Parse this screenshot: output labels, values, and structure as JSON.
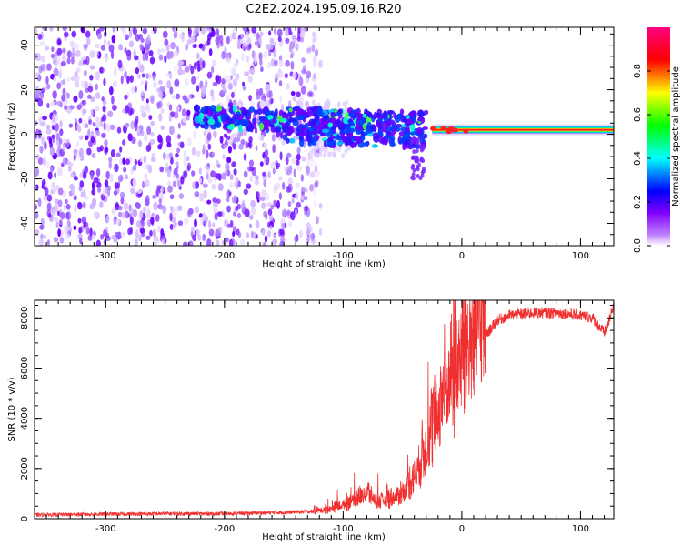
{
  "figure_title": "C2E2.2024.195.09.16.R20",
  "colors": {
    "snr_line": "#f03030",
    "axis": "#000000",
    "noise": "#8a2be2",
    "noise_dark": "#6a00ff"
  },
  "chart_data": [
    {
      "type": "heatmap",
      "title": "C2E2.2024.195.09.16.R20",
      "xlabel": "Height of straight line (km)",
      "ylabel": "Frequency (Hz)",
      "xlim": [
        -360,
        128
      ],
      "ylim": [
        -50,
        48
      ],
      "xticks": [
        -300,
        -200,
        -100,
        0,
        100
      ],
      "yticks": [
        -40,
        -20,
        0,
        20,
        40
      ],
      "colorbar": {
        "label": "Normalized spectral amplitude",
        "range": [
          0,
          1
        ],
        "ticks": [
          0.0,
          0.2,
          0.4,
          0.6,
          0.8
        ],
        "colormap": [
          "#ffffff",
          "#8000ff",
          "#0000ff",
          "#00ffff",
          "#00ff00",
          "#ffff00",
          "#ff0000",
          "#ff0080"
        ]
      },
      "features": [
        {
          "name": "broadband noise",
          "x_range": [
            -360,
            -125
          ],
          "freq_range": [
            -50,
            48
          ],
          "amplitude": 0.15
        },
        {
          "name": "signal band",
          "x_range": [
            -225,
            -150
          ],
          "center_freq": 8,
          "amplitude": 0.3
        },
        {
          "name": "signal band",
          "x_range": [
            -150,
            -30
          ],
          "center_freq": 4,
          "amplitude": 0.4
        },
        {
          "name": "carrier line",
          "x_range": [
            -25,
            128
          ],
          "center_freq": 2,
          "amplitude": 0.9
        }
      ]
    },
    {
      "type": "line",
      "xlabel": "Height of straight line (km)",
      "ylabel": "SNR (10 * v/v)",
      "xlim": [
        -360,
        128
      ],
      "ylim": [
        0,
        8700
      ],
      "xticks": [
        -300,
        -200,
        -100,
        0,
        100
      ],
      "yticks": [
        0,
        2000,
        4000,
        6000,
        8000
      ],
      "series": [
        {
          "name": "SNR",
          "x": [
            -360,
            -300,
            -250,
            -200,
            -150,
            -130,
            -120,
            -110,
            -100,
            -90,
            -80,
            -70,
            -60,
            -50,
            -40,
            -30,
            -20,
            -10,
            0,
            10,
            20,
            30,
            40,
            60,
            80,
            100,
            110,
            120,
            125,
            128
          ],
          "y": [
            150,
            180,
            200,
            200,
            250,
            280,
            300,
            350,
            500,
            700,
            900,
            600,
            700,
            900,
            1500,
            2500,
            3800,
            5000,
            5800,
            6500,
            7300,
            7900,
            8100,
            8200,
            8200,
            8100,
            8000,
            7400,
            8000,
            8600
          ]
        }
      ]
    }
  ]
}
